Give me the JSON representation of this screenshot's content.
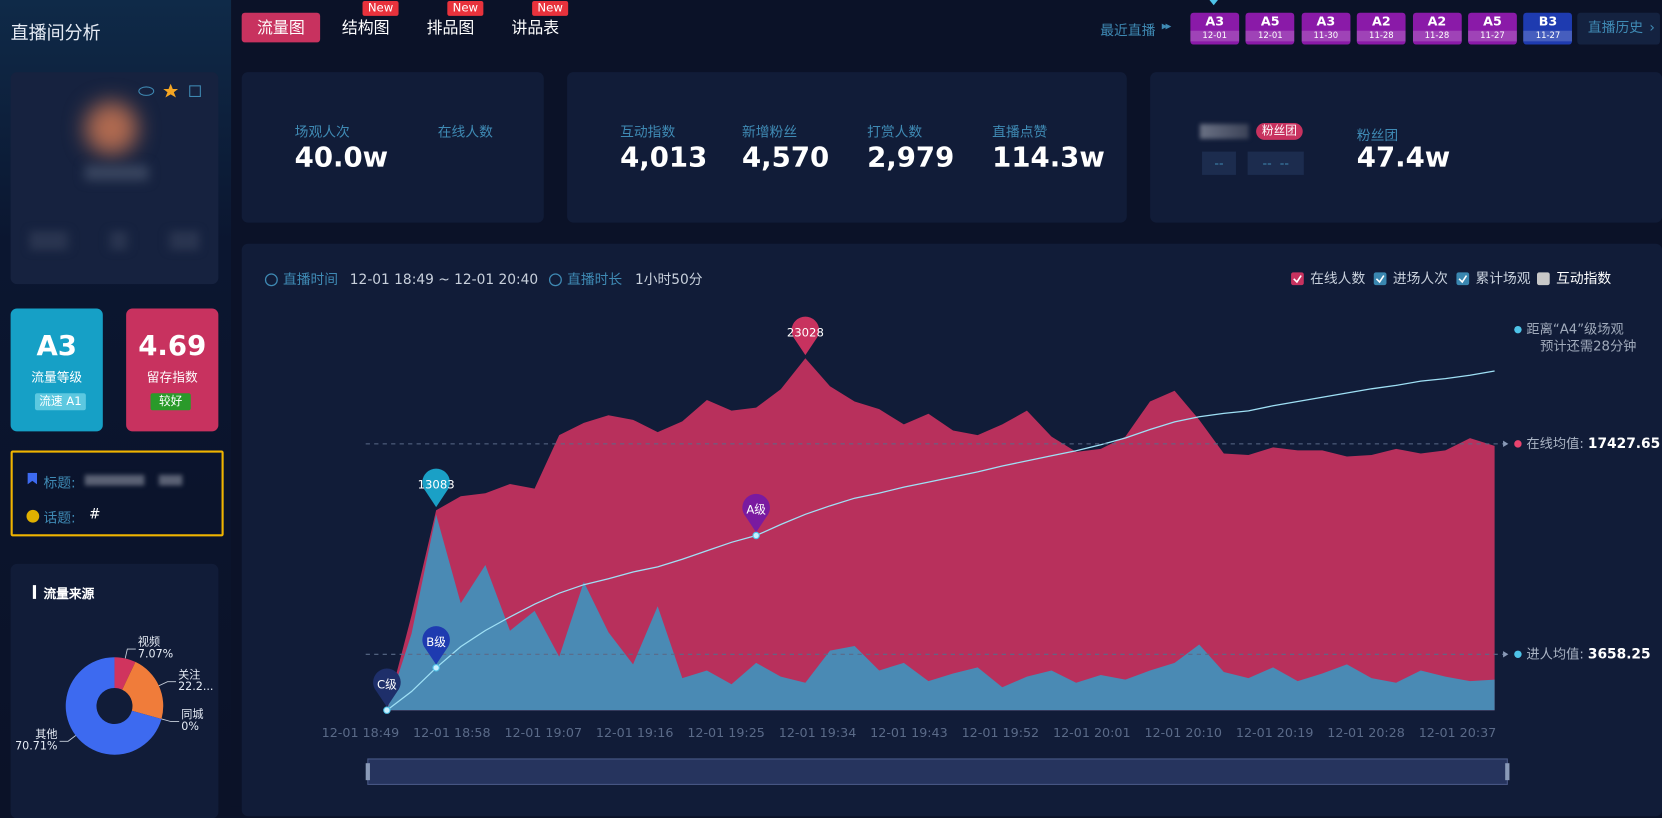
{
  "header": {
    "title": "直播间分析",
    "tabs": [
      {
        "label": "流量图"
      },
      {
        "label": "结构图",
        "badge": "New"
      },
      {
        "label": "排品图",
        "badge": "New"
      },
      {
        "label": "讲品表",
        "badge": "New"
      }
    ],
    "recent_label": "最近直播",
    "recent": [
      {
        "level": "A3",
        "date": "12-01"
      },
      {
        "level": "A5",
        "date": "12-01"
      },
      {
        "level": "A3",
        "date": "11-30"
      },
      {
        "level": "A2",
        "date": "11-28"
      },
      {
        "level": "A2",
        "date": "11-28"
      },
      {
        "level": "A5",
        "date": "11-27"
      },
      {
        "level": "B3",
        "date": "11-27"
      }
    ],
    "history": "直播历史"
  },
  "stats": [
    {
      "items": [
        {
          "label": "场观人次",
          "value": "40.0w"
        },
        {
          "label": "在线人数"
        }
      ]
    },
    {
      "items": [
        {
          "label": "互动指数",
          "value": "4,013"
        },
        {
          "label": "新增粉丝",
          "value": "4,570"
        },
        {
          "label": "打赏人数",
          "value": "2,979"
        },
        {
          "label": "直播点赞",
          "value": "114.3w"
        }
      ]
    }
  ],
  "fans": {
    "badge": "粉丝团",
    "placeholders": [
      "--",
      "--  --"
    ],
    "label": "粉丝团",
    "value": "47.4w"
  },
  "sidebar": {
    "level": {
      "value": "A3",
      "label": "流量等级",
      "tag": "流速 A1"
    },
    "retention": {
      "value": "4.69",
      "label": "留存指数",
      "tag": "较好"
    },
    "title_box": {
      "title_label": "标题:",
      "topic_label": "话题:",
      "topic": "#"
    },
    "traffic": {
      "title": "流量来源",
      "slices": [
        {
          "name": "视频",
          "value": 7.07,
          "value_label": "7.07%",
          "color": "#d0345e"
        },
        {
          "name": "关注",
          "value": 22.22,
          "value_label": "22.2...",
          "color": "#f07c3a"
        },
        {
          "name": "同城",
          "value": 0,
          "value_label": "0%",
          "color": "#35c0a0"
        },
        {
          "name": "其他",
          "value": 70.71,
          "value_label": "70.71%",
          "color": "#3d6af0"
        }
      ]
    }
  },
  "chart": {
    "time_label": "直播时间",
    "time": "12-01 18:49 ~ 12-01 20:40",
    "duration_label": "直播时长",
    "duration": "1小时50分",
    "legend": [
      {
        "name": "在线人数",
        "checked": true,
        "color": "#c8325f"
      },
      {
        "name": "进场人次",
        "checked": true,
        "color": "#3a87b0"
      },
      {
        "name": "累计场观",
        "checked": true,
        "color": "#3a87b0"
      },
      {
        "name": "互动指数",
        "checked": false,
        "color": "#c8c8c8"
      }
    ],
    "series": [
      {
        "color": "#b8305c",
        "values": [
          0,
          6200,
          13083,
          14000,
          14200,
          14800,
          14500,
          18000,
          18800,
          19300,
          19000,
          18200,
          18900,
          20300,
          19600,
          19800,
          21000,
          23028,
          21200,
          20200,
          19700,
          18700,
          19400,
          18300,
          18000,
          18700,
          19600,
          17900,
          16900,
          17100,
          17900,
          20200,
          20900,
          19000,
          16800,
          16700,
          17200,
          17000,
          17000,
          16600,
          16700,
          17100,
          16800,
          17000,
          17800,
          17300
        ],
        "value_labels": [
          null,
          null,
          "13083",
          null,
          null,
          null,
          null,
          null,
          null,
          null,
          null,
          null,
          null,
          null,
          null,
          null,
          null,
          "23028",
          null,
          null,
          null,
          null,
          null,
          null,
          null,
          null,
          null,
          null,
          null,
          null,
          null,
          null,
          null,
          null,
          null,
          null,
          null,
          null,
          null,
          null,
          null,
          null,
          null,
          null,
          null,
          null
        ]
      },
      {
        "color": "#4a8ab4",
        "values": [
          0,
          5000,
          12800,
          7000,
          9500,
          5200,
          6500,
          3500,
          8400,
          5100,
          3000,
          6800,
          2100,
          2600,
          1700,
          3100,
          2200,
          1800,
          3900,
          4200,
          2600,
          3100,
          1900,
          2400,
          2800,
          1500,
          2200,
          2600,
          1800,
          2300,
          2000,
          2600,
          3100,
          4300,
          2500,
          2100,
          2800,
          1900,
          2400,
          3000,
          2100,
          1800,
          2600,
          2200,
          1900,
          2000
        ]
      },
      {
        "color": "#9fe0f5",
        "values": [
          0,
          22000,
          50000,
          75000,
          94000,
          110000,
          125000,
          138000,
          148000,
          155000,
          163000,
          169000,
          178000,
          188000,
          198000,
          206000,
          219000,
          231000,
          241000,
          250000,
          256000,
          263000,
          269000,
          275000,
          281000,
          288000,
          294000,
          300000,
          306000,
          313000,
          321000,
          331000,
          340000,
          346000,
          350000,
          353000,
          359000,
          364000,
          369000,
          374000,
          379000,
          383000,
          388000,
          391000,
          395000,
          400000
        ],
        "point_labels": [
          "C级",
          null,
          "B级",
          null,
          null,
          null,
          null,
          null,
          null,
          null,
          null,
          null,
          null,
          null,
          null,
          "A级",
          null,
          null,
          null,
          null,
          null,
          null,
          null,
          null,
          null,
          null,
          null,
          null,
          null,
          null,
          null,
          null,
          null,
          null,
          null,
          null,
          null,
          null,
          null,
          null,
          null,
          null,
          null,
          null,
          null,
          null
        ]
      }
    ],
    "xticks": [
      "12-01 18:49",
      "12-01 18:58",
      "12-01 19:07",
      "12-01 19:16",
      "12-01 19:25",
      "12-01 19:34",
      "12-01 19:43",
      "12-01 19:52",
      "12-01 20:01",
      "12-01 20:10",
      "12-01 20:19",
      "12-01 20:28",
      "12-01 20:37"
    ],
    "averages": [
      {
        "label": "在线均值:",
        "value": 17427.65,
        "color": "#e8436e"
      },
      {
        "label": "进人均值:",
        "value": 3658.25,
        "color": "#4ec3e8"
      }
    ],
    "forecast": [
      "距离“A4”级场观",
      "预计还需28分钟"
    ]
  }
}
